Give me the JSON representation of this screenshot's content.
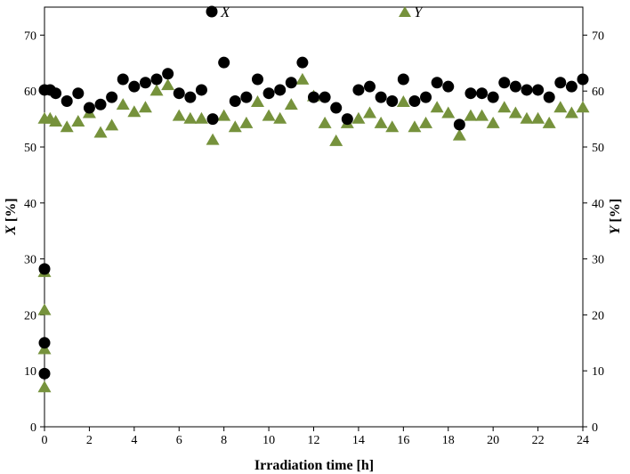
{
  "chart_data": {
    "type": "scatter",
    "xlabel": "Irradiation time [h]",
    "ylabel_left": {
      "symbol": "X",
      "unit": " [%]"
    },
    "ylabel_right": {
      "symbol": "Y",
      "unit": " [%]"
    },
    "xlim": [
      0,
      24
    ],
    "ylim": [
      0,
      75
    ],
    "xticks": [
      0,
      2,
      4,
      6,
      8,
      10,
      12,
      14,
      16,
      18,
      20,
      22,
      24
    ],
    "yticks": [
      0,
      10,
      20,
      30,
      40,
      50,
      60,
      70
    ],
    "grid": false,
    "legend_position": "top",
    "series": [
      {
        "name": "X",
        "marker": "circle",
        "color": "#000000",
        "points": [
          [
            0,
            9.5
          ],
          [
            0,
            15
          ],
          [
            0,
            28.2
          ],
          [
            0,
            60.2
          ],
          [
            0.25,
            60.2
          ],
          [
            0.5,
            59.6
          ],
          [
            1,
            58.2
          ],
          [
            1.5,
            59.6
          ],
          [
            2,
            57
          ],
          [
            2.5,
            57.6
          ],
          [
            3,
            58.9
          ],
          [
            3.5,
            62.1
          ],
          [
            4,
            60.8
          ],
          [
            4.5,
            61.5
          ],
          [
            5,
            62.1
          ],
          [
            5.5,
            63.1
          ],
          [
            6,
            59.6
          ],
          [
            6.5,
            58.9
          ],
          [
            7,
            60.2
          ],
          [
            7.5,
            55
          ],
          [
            8,
            65.1
          ],
          [
            8.5,
            58.2
          ],
          [
            9,
            58.9
          ],
          [
            9.5,
            62.1
          ],
          [
            10,
            59.6
          ],
          [
            10.5,
            60.2
          ],
          [
            11,
            61.5
          ],
          [
            11.5,
            65.1
          ],
          [
            12,
            58.9
          ],
          [
            12.5,
            58.9
          ],
          [
            13,
            57
          ],
          [
            13.5,
            55
          ],
          [
            14,
            60.2
          ],
          [
            14.5,
            60.8
          ],
          [
            15,
            58.9
          ],
          [
            15.5,
            58.2
          ],
          [
            16,
            62.1
          ],
          [
            16.5,
            58.2
          ],
          [
            17,
            58.9
          ],
          [
            17.5,
            61.5
          ],
          [
            18,
            60.8
          ],
          [
            18.5,
            54
          ],
          [
            19,
            59.6
          ],
          [
            19.5,
            59.6
          ],
          [
            20,
            58.9
          ],
          [
            20.5,
            61.5
          ],
          [
            21,
            60.8
          ],
          [
            21.5,
            60.2
          ],
          [
            22,
            60.2
          ],
          [
            22.5,
            58.9
          ],
          [
            23,
            61.5
          ],
          [
            23.5,
            60.8
          ],
          [
            24,
            62.1
          ]
        ]
      },
      {
        "name": "Y",
        "marker": "triangle",
        "color": "#76923c",
        "points": [
          [
            0,
            7
          ],
          [
            0,
            13.8
          ],
          [
            0,
            20.8
          ],
          [
            0,
            27.6
          ],
          [
            0,
            55
          ],
          [
            0.25,
            55
          ],
          [
            0.5,
            54.5
          ],
          [
            1,
            53.5
          ],
          [
            1.5,
            54.5
          ],
          [
            2,
            56
          ],
          [
            2.5,
            52.5
          ],
          [
            3,
            53.8
          ],
          [
            3.5,
            57.5
          ],
          [
            4,
            56.2
          ],
          [
            4.5,
            57
          ],
          [
            5,
            60
          ],
          [
            5.5,
            61
          ],
          [
            6,
            55.5
          ],
          [
            6.5,
            55
          ],
          [
            7,
            55
          ],
          [
            7.5,
            51.2
          ],
          [
            8,
            55.5
          ],
          [
            8.5,
            53.5
          ],
          [
            9,
            54.2
          ],
          [
            9.5,
            58
          ],
          [
            10,
            55.5
          ],
          [
            10.5,
            55
          ],
          [
            11,
            57.5
          ],
          [
            11.5,
            62
          ],
          [
            12,
            59
          ],
          [
            12.5,
            54.2
          ],
          [
            13,
            51
          ],
          [
            13.5,
            54.2
          ],
          [
            14,
            55
          ],
          [
            14.5,
            56
          ],
          [
            15,
            54.2
          ],
          [
            15.5,
            53.5
          ],
          [
            16,
            58
          ],
          [
            16.5,
            53.5
          ],
          [
            17,
            54.2
          ],
          [
            17.5,
            57
          ],
          [
            18,
            56
          ],
          [
            18.5,
            52
          ],
          [
            19,
            55.5
          ],
          [
            19.5,
            55.5
          ],
          [
            20,
            54.2
          ],
          [
            20.5,
            57
          ],
          [
            21,
            56
          ],
          [
            21.5,
            55
          ],
          [
            22,
            55
          ],
          [
            22.5,
            54.2
          ],
          [
            23,
            57
          ],
          [
            23.5,
            56
          ],
          [
            24,
            57
          ]
        ]
      }
    ]
  }
}
